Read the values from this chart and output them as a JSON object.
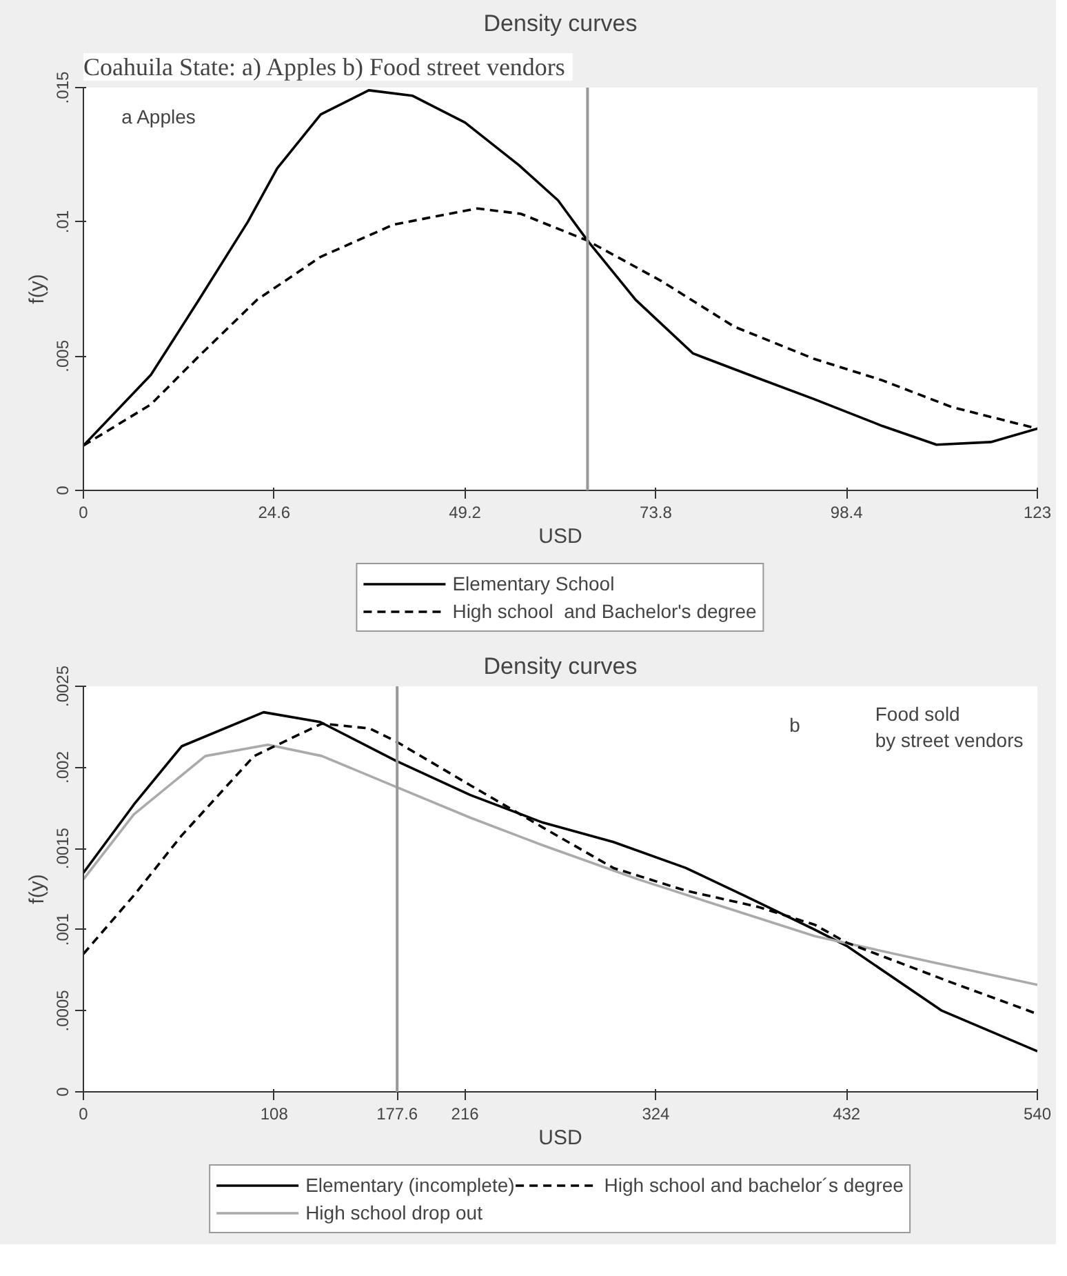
{
  "chart_data": [
    {
      "type": "line",
      "title": "Density curves",
      "xlabel": "USD",
      "ylabel": "f(y)",
      "annotations": [
        "Coahuila State:  a) Apples b) Food street vendors",
        "a    Apples"
      ],
      "xlim": [
        0,
        123
      ],
      "xticks": [
        0,
        24.6,
        49.2,
        73.8,
        98.4,
        123
      ],
      "ylim": [
        0,
        0.015
      ],
      "yticks": [
        0,
        {
          "value": 0.005,
          "label": ".005"
        },
        {
          "value": 0.01,
          "label": ".01"
        },
        {
          "value": 0.015,
          "label": ".015"
        }
      ],
      "grid": false,
      "legend": "bottom",
      "marker": "none",
      "ref_lines": [
        {
          "axis": "x",
          "value": 65,
          "color": "#999999"
        }
      ],
      "series": [
        {
          "name": "Elementary School",
          "color": "#000000",
          "line_style": "solid",
          "x": [
            0,
            8.7,
            14.9,
            21.2,
            25,
            30.6,
            36.8,
            42.4,
            49.2,
            56.2,
            61.2,
            65,
            71.2,
            78.6,
            86.8,
            94.2,
            103,
            110,
            117,
            123
          ],
          "values": [
            0.00167,
            0.0043,
            0.0071,
            0.01,
            0.012,
            0.014,
            0.0149,
            0.0147,
            0.0137,
            0.0121,
            0.0108,
            0.0093,
            0.0071,
            0.0051,
            0.0042,
            0.0034,
            0.0024,
            0.0017,
            0.0018,
            0.0023
          ]
        },
        {
          "name": "High school  and Bachelor's degree",
          "color": "#000000",
          "line_style": "dashed",
          "x": [
            0,
            8.7,
            14.9,
            22.4,
            30.6,
            40,
            50.8,
            56.4,
            65,
            74.5,
            83.9,
            94.2,
            103,
            112,
            123
          ],
          "values": [
            0.00167,
            0.0032,
            0.005,
            0.0071,
            0.0087,
            0.0099,
            0.0105,
            0.0103,
            0.0093,
            0.0078,
            0.0061,
            0.0049,
            0.0041,
            0.0031,
            0.0023
          ]
        }
      ]
    },
    {
      "type": "line",
      "title": "Density curves",
      "xlabel": "USD",
      "ylabel": "f(y)",
      "annotations": [
        "b",
        "Food sold\nby street vendors"
      ],
      "xlim": [
        0,
        540
      ],
      "xticks": [
        0,
        108,
        177.6,
        216,
        324,
        432,
        540
      ],
      "ylim": [
        0,
        0.0025
      ],
      "yticks": [
        0,
        {
          "value": 0.0005,
          "label": ".0005"
        },
        {
          "value": 0.001,
          "label": ".001"
        },
        {
          "value": 0.0015,
          "label": ".0015"
        },
        {
          "value": 0.002,
          "label": ".002"
        },
        {
          "value": 0.0025,
          "label": ".0025"
        }
      ],
      "grid": false,
      "legend": "bottom",
      "marker": "none",
      "ref_lines": [
        {
          "axis": "x",
          "value": 177.6,
          "color": "#999999"
        }
      ],
      "series": [
        {
          "name": "Elementary (incomplete)",
          "color": "#000000",
          "line_style": "solid",
          "x": [
            0,
            28.5,
            55.6,
            102,
            134,
            177,
            219,
            260,
            300,
            341,
            374,
            414,
            432,
            486,
            540
          ],
          "values": [
            0.00135,
            0.00177,
            0.00213,
            0.00234,
            0.00228,
            0.00204,
            0.00183,
            0.00166,
            0.00154,
            0.00138,
            0.00121,
            0.001,
            0.0009,
            0.0005,
            0.00025
          ]
        },
        {
          "name": "High school drop out",
          "color": "#aaaaaa",
          "line_style": "solid",
          "x": [
            0,
            28.5,
            69,
            104.5,
            135,
            177,
            219,
            260,
            314,
            368,
            414,
            480,
            540
          ],
          "values": [
            0.00131,
            0.00171,
            0.00207,
            0.00214,
            0.00207,
            0.00188,
            0.00169,
            0.00152,
            0.00131,
            0.00112,
            0.00096,
            0.0008,
            0.00066
          ]
        },
        {
          "name": "High school and bachelor´s degree",
          "color": "#000000",
          "line_style": "dashed",
          "x": [
            0,
            28.5,
            55.6,
            96.6,
            135,
            162,
            177,
            219,
            260,
            300,
            341,
            382,
            414,
            432,
            490,
            540
          ],
          "values": [
            0.00085,
            0.00121,
            0.00158,
            0.00207,
            0.00227,
            0.00224,
            0.00216,
            0.00189,
            0.00163,
            0.00138,
            0.00124,
            0.00114,
            0.00103,
            0.00092,
            0.00068,
            0.00048
          ]
        }
      ]
    }
  ]
}
